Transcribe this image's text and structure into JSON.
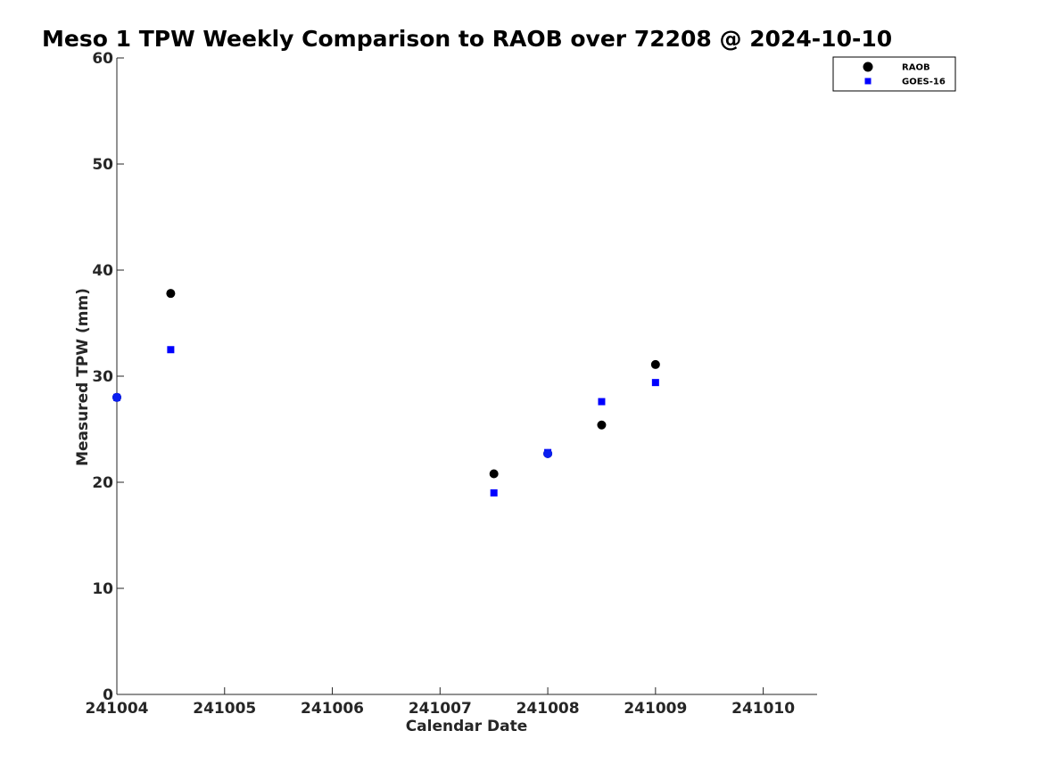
{
  "chart_data": {
    "type": "scatter",
    "title": "Meso 1 TPW Weekly Comparison to RAOB over 72208 @ 2024-10-10",
    "xlabel": "Calendar Date",
    "ylabel": "Measured TPW (mm)",
    "x_tick_labels": [
      "241004",
      "241005",
      "241006",
      "241007",
      "241008",
      "241009",
      "241010"
    ],
    "y_tick_labels": [
      "0",
      "10",
      "20",
      "30",
      "40",
      "50",
      "60"
    ],
    "xlim": [
      "2024-10-04",
      "2024-10-10T12:00"
    ],
    "ylim": [
      0,
      60
    ],
    "grid": false,
    "legend_position": "top-right",
    "series": [
      {
        "name": "RAOB",
        "marker": "circle",
        "color": "#000000",
        "points": [
          {
            "x": "2024-10-04T00:00",
            "y": 28.0
          },
          {
            "x": "2024-10-04T12:00",
            "y": 37.8
          },
          {
            "x": "2024-10-07T12:00",
            "y": 20.8
          },
          {
            "x": "2024-10-08T00:00",
            "y": 22.7
          },
          {
            "x": "2024-10-08T12:00",
            "y": 25.4
          },
          {
            "x": "2024-10-09T00:00",
            "y": 31.1
          }
        ]
      },
      {
        "name": "GOES-16",
        "marker": "square",
        "color": "#0000ff",
        "points": [
          {
            "x": "2024-10-04T00:00",
            "y": 28.0
          },
          {
            "x": "2024-10-04T12:00",
            "y": 32.5
          },
          {
            "x": "2024-10-07T12:00",
            "y": 19.0
          },
          {
            "x": "2024-10-08T00:00",
            "y": 22.8
          },
          {
            "x": "2024-10-08T12:00",
            "y": 27.6
          },
          {
            "x": "2024-10-09T00:00",
            "y": 29.4
          }
        ]
      }
    ],
    "overlap_marker_color": "#0a1ef0"
  }
}
